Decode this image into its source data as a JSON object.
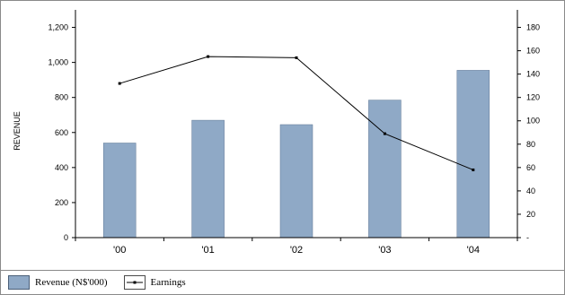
{
  "chart_data": {
    "type": "bar+line",
    "categories": [
      "'00",
      "'01",
      "'02",
      "'03",
      "'04"
    ],
    "series": [
      {
        "name": "Revenue (N$'000)",
        "type": "bar",
        "axis": "left",
        "values": [
          540,
          670,
          645,
          785,
          955
        ]
      },
      {
        "name": "Earnings",
        "type": "line",
        "axis": "right",
        "values": [
          132,
          155,
          154,
          89,
          58
        ]
      }
    ],
    "ylabel": "REVENUE",
    "ylim": [
      0,
      1300
    ],
    "y_ticks": [
      "0",
      "200",
      "400",
      "600",
      "800",
      "1,000",
      "1,200"
    ],
    "y_tick_values": [
      0,
      200,
      400,
      600,
      800,
      1000,
      1200
    ],
    "y2lim": [
      0,
      195
    ],
    "y2_ticks": [
      "-",
      "20",
      "40",
      "60",
      "80",
      "100",
      "120",
      "140",
      "160",
      "180"
    ],
    "y2_tick_values": [
      0,
      20,
      40,
      60,
      80,
      100,
      120,
      140,
      160,
      180
    ],
    "legend_placement": "bottom",
    "grid": false,
    "colors": {
      "bar": "#8fa9c6",
      "bar_edge": "#5d7593",
      "line": "#000000",
      "axis": "#000000"
    }
  },
  "legend": {
    "bar_label": "Revenue (N$'000)",
    "line_label": "Earnings"
  }
}
